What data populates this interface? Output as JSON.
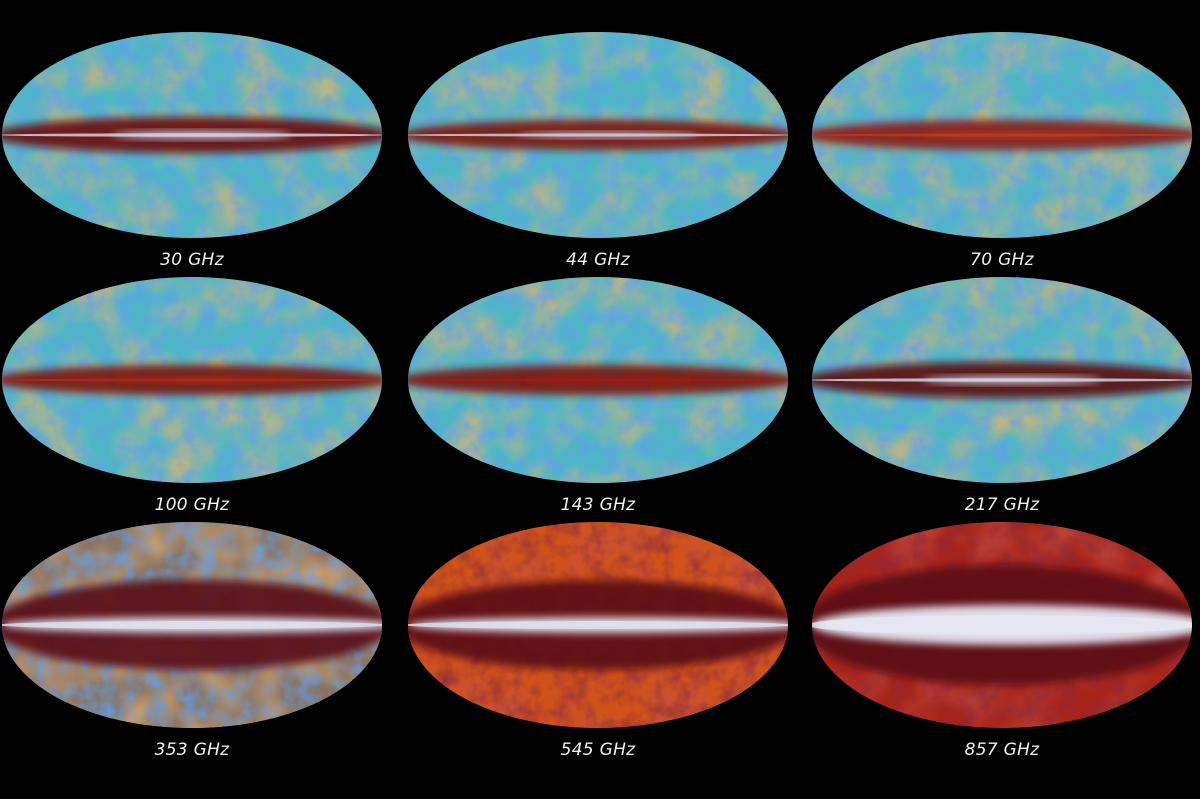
{
  "maps": [
    {
      "label": "30 GHz",
      "style": "cmb",
      "band": "ridge",
      "colors": {
        "base": "#4fb7c4",
        "mid": "#d98a3a",
        "band": "#6a0d10",
        "core": "#d8dcef"
      }
    },
    {
      "label": "44 GHz",
      "style": "cmb",
      "band": "thin",
      "colors": {
        "base": "#4fb7c4",
        "mid": "#d98a3a",
        "band": "#7a1410",
        "core": "#d0d4ea"
      }
    },
    {
      "label": "70 GHz",
      "style": "cmb",
      "band": "thin",
      "colors": {
        "base": "#4fb7c4",
        "mid": "#d98a3a",
        "band": "#8a1a12",
        "core": "#c23a1a"
      }
    },
    {
      "label": "100 GHz",
      "style": "cmb",
      "band": "thin",
      "colors": {
        "base": "#4fb7c4",
        "mid": "#d98a3a",
        "band": "#7a1410",
        "core": "#b02a14"
      }
    },
    {
      "label": "143 GHz",
      "style": "cmb",
      "band": "thin",
      "colors": {
        "base": "#4fb7c4",
        "mid": "#d98a3a",
        "band": "#7a1410",
        "core": "#a01e12"
      }
    },
    {
      "label": "217 GHz",
      "style": "cmb",
      "band": "ridge",
      "colors": {
        "base": "#4fb7c4",
        "mid": "#c8602a",
        "band": "#5a0a10",
        "core": "#d8dcef"
      }
    },
    {
      "label": "353 GHz",
      "style": "dust-cmb",
      "band": "wide",
      "colors": {
        "base": "#4fb7c4",
        "mid": "#b8401c",
        "band": "#5a0a12",
        "core": "#dfe2f0"
      }
    },
    {
      "label": "545 GHz",
      "style": "dust",
      "band": "wide",
      "colors": {
        "base": "#d05218",
        "mid": "#a8301a",
        "band": "#5a0a14",
        "core": "#dfe2f0"
      }
    },
    {
      "label": "857 GHz",
      "style": "dust",
      "band": "huge",
      "colors": {
        "base": "#a82418",
        "mid": "#7a121a",
        "band": "#5a0a18",
        "core": "#e6e8f4"
      }
    }
  ]
}
